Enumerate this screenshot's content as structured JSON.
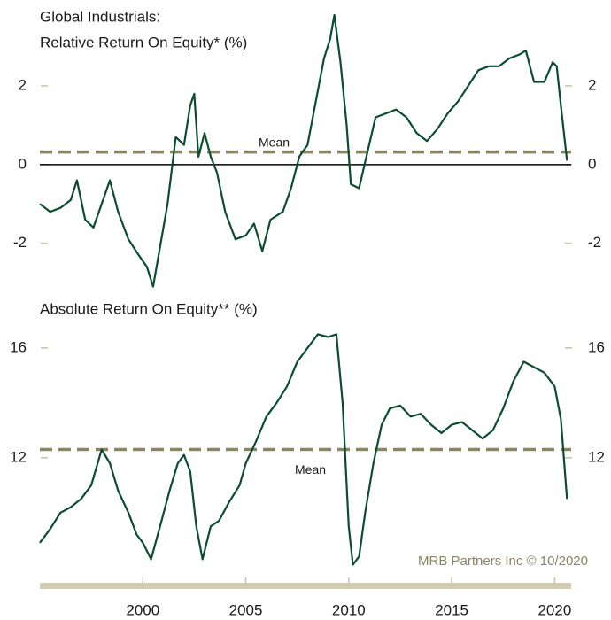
{
  "chart_data": [
    {
      "type": "line",
      "title": [
        "Global Industrials:",
        "Relative Return On Equity* (%)"
      ],
      "mean": 0.32,
      "mean_label": "Mean",
      "mean_color": "#8c8466",
      "xlim": [
        1995,
        2020.8
      ],
      "ylim": [
        -3.2,
        3.8
      ],
      "yticks": [
        -2,
        0,
        2
      ],
      "zero_line": true,
      "series": [
        {
          "color": "#0b4d2e",
          "x": [
            1995.0,
            1995.5,
            1996.0,
            1996.5,
            1996.8,
            1997.2,
            1997.6,
            1998.0,
            1998.4,
            1998.8,
            1999.3,
            1999.8,
            2000.2,
            2000.5,
            2000.8,
            2001.2,
            2001.6,
            2002.0,
            2002.3,
            2002.5,
            2002.7,
            2003.0,
            2003.3,
            2003.6,
            2004.0,
            2004.5,
            2005.0,
            2005.4,
            2005.8,
            2006.2,
            2006.8,
            2007.2,
            2007.6,
            2008.0,
            2008.4,
            2008.8,
            2009.1,
            2009.3,
            2009.6,
            2009.9,
            2010.1,
            2010.5,
            2010.9,
            2011.3,
            2011.8,
            2012.3,
            2012.8,
            2013.3,
            2013.8,
            2014.3,
            2014.8,
            2015.3,
            2015.8,
            2016.3,
            2016.8,
            2017.3,
            2017.8,
            2018.3,
            2018.6,
            2019.0,
            2019.5,
            2019.9,
            2020.1,
            2020.3,
            2020.6
          ],
          "values": [
            -1.0,
            -1.2,
            -1.1,
            -0.9,
            -0.4,
            -1.4,
            -1.6,
            -1.0,
            -0.4,
            -1.2,
            -1.9,
            -2.3,
            -2.6,
            -3.1,
            -2.2,
            -1.0,
            0.7,
            0.5,
            1.5,
            1.8,
            0.2,
            0.8,
            0.2,
            -0.2,
            -1.2,
            -1.9,
            -1.8,
            -1.5,
            -2.2,
            -1.4,
            -1.2,
            -0.6,
            0.2,
            0.5,
            1.6,
            2.7,
            3.2,
            3.8,
            2.6,
            1.0,
            -0.5,
            -0.6,
            0.3,
            1.2,
            1.3,
            1.4,
            1.2,
            0.8,
            0.6,
            0.9,
            1.3,
            1.6,
            2.0,
            2.4,
            2.5,
            2.5,
            2.7,
            2.8,
            2.9,
            2.1,
            2.1,
            2.6,
            2.5,
            1.5,
            0.1
          ]
        }
      ]
    },
    {
      "type": "line",
      "title": [
        "Absolute Return On Equity** (%)"
      ],
      "mean": 12.3,
      "mean_label": "Mean",
      "mean_color": "#8c8466",
      "source": "MRB Partners Inc © 10/2020",
      "xlim": [
        1995,
        2020.8
      ],
      "xticks": [
        2000,
        2005,
        2010,
        2015,
        2020
      ],
      "ylim": [
        7.7,
        16.9
      ],
      "yticks": [
        12,
        16
      ],
      "zero_line": false,
      "series": [
        {
          "color": "#0b4d2e",
          "x": [
            1995.0,
            1995.5,
            1996.0,
            1996.5,
            1997.0,
            1997.5,
            1998.0,
            1998.4,
            1998.8,
            1999.3,
            1999.7,
            2000.0,
            2000.4,
            2000.8,
            2001.3,
            2001.7,
            2002.0,
            2002.3,
            2002.6,
            2002.9,
            2003.3,
            2003.7,
            2004.2,
            2004.7,
            2005.0,
            2005.5,
            2006.0,
            2006.5,
            2007.0,
            2007.5,
            2008.0,
            2008.5,
            2009.0,
            2009.4,
            2009.7,
            2010.0,
            2010.2,
            2010.5,
            2010.8,
            2011.2,
            2011.6,
            2012.0,
            2012.5,
            2013.0,
            2013.5,
            2014.0,
            2014.5,
            2015.0,
            2015.5,
            2016.0,
            2016.5,
            2017.0,
            2017.5,
            2018.0,
            2018.5,
            2019.0,
            2019.5,
            2020.0,
            2020.3,
            2020.6
          ],
          "values": [
            8.9,
            9.4,
            10.0,
            10.2,
            10.5,
            11.0,
            12.3,
            11.8,
            10.8,
            10.0,
            9.2,
            8.9,
            8.3,
            9.4,
            10.8,
            11.8,
            12.1,
            11.5,
            9.5,
            8.3,
            9.5,
            9.7,
            10.4,
            11.0,
            11.8,
            12.6,
            13.5,
            14.0,
            14.6,
            15.5,
            16.0,
            16.5,
            16.4,
            16.5,
            14.0,
            9.5,
            8.1,
            8.4,
            10.0,
            11.8,
            13.2,
            13.8,
            13.9,
            13.5,
            13.6,
            13.2,
            12.9,
            13.2,
            13.3,
            13.0,
            12.7,
            13.0,
            13.8,
            14.8,
            15.5,
            15.3,
            15.1,
            14.6,
            13.4,
            10.5
          ]
        }
      ]
    }
  ]
}
